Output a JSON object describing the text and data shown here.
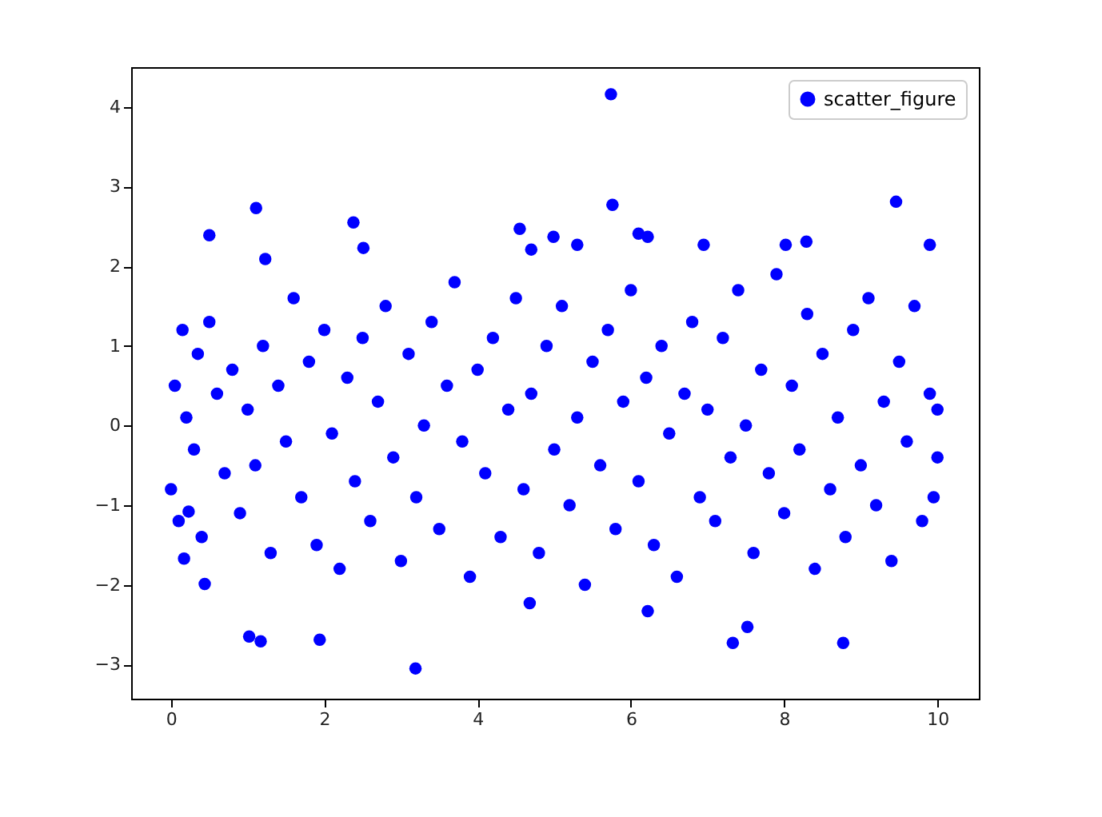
{
  "chart_data": {
    "type": "scatter",
    "x": [
      5.74,
      5.76,
      0.5,
      1.11,
      1.23,
      2.38,
      2.51,
      1.02,
      1.17,
      1.94,
      3.19,
      9.46,
      9.9,
      7.33,
      7.52,
      8.77,
      6.22,
      4.68,
      0.17,
      0.44,
      0.23,
      0.0,
      8.02,
      6.95,
      6.1,
      6.22,
      4.99,
      4.55,
      5.3,
      8.29,
      4.7,
      0.05,
      0.1,
      0.15,
      0.2,
      0.3,
      0.35,
      0.4,
      0.5,
      0.6,
      0.7,
      0.8,
      0.9,
      1.0,
      1.1,
      1.2,
      1.3,
      1.4,
      1.5,
      1.6,
      1.7,
      1.8,
      1.9,
      2.0,
      2.1,
      2.2,
      2.3,
      2.4,
      2.5,
      2.6,
      2.7,
      2.8,
      2.9,
      3.0,
      3.1,
      3.2,
      3.3,
      3.4,
      3.5,
      3.6,
      3.7,
      3.8,
      3.9,
      4.0,
      4.1,
      4.2,
      4.3,
      4.4,
      4.5,
      4.6,
      4.7,
      4.8,
      4.9,
      5.0,
      5.1,
      5.2,
      5.3,
      5.4,
      5.5,
      5.6,
      5.7,
      5.8,
      5.9,
      6.0,
      6.1,
      6.2,
      6.3,
      6.4,
      6.5,
      6.6,
      6.7,
      6.8,
      6.9,
      7.0,
      7.1,
      7.2,
      7.3,
      7.4,
      7.5,
      7.6,
      7.7,
      7.8,
      7.9,
      8.0,
      8.1,
      8.2,
      8.3,
      8.4,
      8.5,
      8.6,
      8.7,
      8.8,
      8.9,
      9.0,
      9.1,
      9.2,
      9.3,
      9.4,
      9.5,
      9.6,
      9.7,
      9.8,
      9.9,
      10.0,
      10.0,
      9.95
    ],
    "series": [
      {
        "name": "scatter_figure",
        "color": "#0000ff",
        "values": [
          4.16,
          2.77,
          2.39,
          2.73,
          2.09,
          2.55,
          2.23,
          -2.65,
          -2.71,
          -2.69,
          -3.05,
          2.81,
          2.27,
          -2.73,
          -2.53,
          -2.73,
          -2.33,
          -2.23,
          -1.67,
          -1.99,
          -1.08,
          -0.8,
          2.27,
          2.27,
          2.41,
          2.37,
          2.37,
          2.47,
          2.27,
          2.31,
          2.21,
          0.5,
          -1.2,
          1.2,
          0.1,
          -0.3,
          0.9,
          -1.4,
          1.3,
          0.4,
          -0.6,
          0.7,
          -1.1,
          0.2,
          -0.5,
          1.0,
          -1.6,
          0.5,
          -0.2,
          1.6,
          -0.9,
          0.8,
          -1.5,
          1.2,
          -0.1,
          -1.8,
          0.6,
          -0.7,
          1.1,
          -1.2,
          0.3,
          1.5,
          -0.4,
          -1.7,
          0.9,
          -0.9,
          0.0,
          1.3,
          -1.3,
          0.5,
          1.8,
          -0.2,
          -1.9,
          0.7,
          -0.6,
          1.1,
          -1.4,
          0.2,
          1.6,
          -0.8,
          0.4,
          -1.6,
          1.0,
          -0.3,
          1.5,
          -1.0,
          0.1,
          -2.0,
          0.8,
          -0.5,
          1.2,
          -1.3,
          0.3,
          1.7,
          -0.7,
          0.6,
          -1.5,
          1.0,
          -0.1,
          -1.9,
          0.4,
          1.3,
          -0.9,
          0.2,
          -1.2,
          1.1,
          -0.4,
          1.7,
          0.0,
          -1.6,
          0.7,
          -0.6,
          1.9,
          -1.1,
          0.5,
          -0.3,
          1.4,
          -1.8,
          0.9,
          -0.8,
          0.1,
          -1.4,
          1.2,
          -0.5,
          1.6,
          -1.0,
          0.3,
          -1.7,
          0.8,
          -0.2,
          1.5,
          -1.2,
          0.4,
          -0.4,
          0.2,
          -0.9
        ]
      }
    ],
    "xlim": [
      -0.52,
      10.54
    ],
    "ylim": [
      -3.43,
      4.5
    ],
    "xticks": [
      0,
      2,
      4,
      6,
      8,
      10
    ],
    "yticks": [
      -3,
      -2,
      -1,
      0,
      1,
      2,
      3,
      4
    ],
    "grid": false,
    "legend": "top right",
    "marker": "circle"
  }
}
